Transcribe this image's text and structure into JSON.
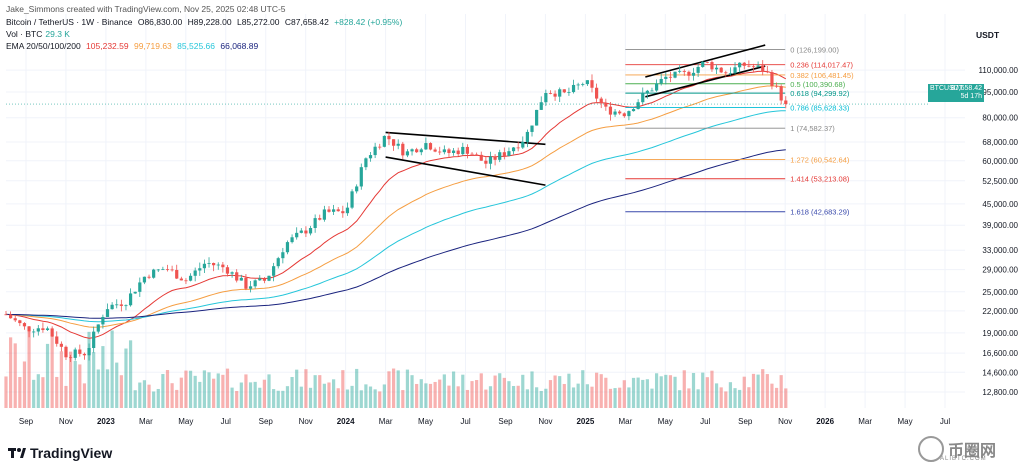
{
  "header": {
    "creator": "Jake_Simmons created with TradingView.com, Nov 25, 2025 02:48 UTC-5",
    "symbol": "Bitcoin / TetherUS · 1W · Binance",
    "ohlc": {
      "o": "O86,830.00",
      "h": "H89,228.00",
      "l": "L85,272.00",
      "c": "C87,658.42",
      "chg": "+828.42 (+0.95%)"
    },
    "vol_label": "Vol · BTC",
    "vol_value": "29.3 K",
    "ema_label": "EMA 20/50/100/200",
    "ema_values": [
      "105,232.59",
      "99,719.63",
      "85,525.66",
      "66,068.89"
    ]
  },
  "colors": {
    "up": "#26a69a",
    "down": "#ef5350",
    "ema20": "#e53935",
    "ema50": "#f59e42",
    "ema100": "#26c6da",
    "ema200": "#1a237e",
    "fib0": "#888888",
    "fib236": "#e53935",
    "fib382": "#f59e42",
    "fib5": "#4caf50",
    "fib618": "#009688",
    "fib786": "#00bcd4",
    "fib1272": "#f59e42",
    "fib1414": "#e53935",
    "fib1618": "#3949ab"
  },
  "axis_currency": "USDT",
  "price_tag": {
    "symbol": "BTCUSDT",
    "price": "87,658.42",
    "countdown": "5d 17h"
  },
  "logo_text": "TradingView",
  "watermark": {
    "text": "币圈网",
    "sub": "ALIBTC.COM"
  },
  "chart_data": {
    "type": "candlestick",
    "title": "Bitcoin / TetherUS · 1W · Binance",
    "scale": "log",
    "ylim": [
      11500,
      160000
    ],
    "x_tick_labels": [
      "Sep",
      "Nov",
      "2023",
      "Mar",
      "May",
      "Jul",
      "Sep",
      "Nov",
      "2024",
      "Mar",
      "May",
      "Jul",
      "Sep",
      "Nov",
      "2025",
      "Mar",
      "May",
      "Jul",
      "Sep",
      "Nov",
      "2026",
      "Mar",
      "May",
      "Jul"
    ],
    "y_tick_labels": [
      "110,000.00",
      "95,000.00",
      "80,000.00",
      "68,000.00",
      "60,000.00",
      "52,500.00",
      "45,000.00",
      "39,000.00",
      "33,000.00",
      "29,000.00",
      "25,000.00",
      "22,000.00",
      "19,000.00",
      "16,600.00",
      "14,600.00",
      "12,800.00"
    ],
    "y_tick_values": [
      110000,
      95000,
      80000,
      68000,
      60000,
      52500,
      45000,
      39000,
      33000,
      29000,
      25000,
      22000,
      19000,
      16600,
      14600,
      12800
    ],
    "price_anchors": [
      {
        "t": "2022-08",
        "p": 21500
      },
      {
        "t": "2022-09",
        "p": 19500
      },
      {
        "t": "2022-10",
        "p": 19800
      },
      {
        "t": "2022-11",
        "p": 16500
      },
      {
        "t": "2022-12",
        "p": 16600
      },
      {
        "t": "2023-01",
        "p": 22500
      },
      {
        "t": "2023-02",
        "p": 23500
      },
      {
        "t": "2023-03",
        "p": 28000
      },
      {
        "t": "2023-04",
        "p": 29300
      },
      {
        "t": "2023-05",
        "p": 27000
      },
      {
        "t": "2023-06",
        "p": 30400
      },
      {
        "t": "2023-07",
        "p": 29300
      },
      {
        "t": "2023-08",
        "p": 26000
      },
      {
        "t": "2023-09",
        "p": 27000
      },
      {
        "t": "2023-10",
        "p": 34500
      },
      {
        "t": "2023-11",
        "p": 37700
      },
      {
        "t": "2023-12",
        "p": 42500
      },
      {
        "t": "2024-01",
        "p": 42600
      },
      {
        "t": "2024-02",
        "p": 61000
      },
      {
        "t": "2024-03",
        "p": 71000
      },
      {
        "t": "2024-04",
        "p": 63000
      },
      {
        "t": "2024-05",
        "p": 67500
      },
      {
        "t": "2024-06",
        "p": 63000
      },
      {
        "t": "2024-07",
        "p": 65000
      },
      {
        "t": "2024-08",
        "p": 59000
      },
      {
        "t": "2024-09",
        "p": 63500
      },
      {
        "t": "2024-10",
        "p": 70000
      },
      {
        "t": "2024-11",
        "p": 96000
      },
      {
        "t": "2024-12",
        "p": 93500
      },
      {
        "t": "2025-01",
        "p": 102000
      },
      {
        "t": "2025-02",
        "p": 84500
      },
      {
        "t": "2025-03",
        "p": 82500
      },
      {
        "t": "2025-04",
        "p": 94000
      },
      {
        "t": "2025-05",
        "p": 104600
      },
      {
        "t": "2025-06",
        "p": 107000
      },
      {
        "t": "2025-07",
        "p": 115700
      },
      {
        "t": "2025-08",
        "p": 108200
      },
      {
        "t": "2025-09",
        "p": 114000
      },
      {
        "t": "2025-10",
        "p": 110000
      },
      {
        "t": "2025-11",
        "p": 87658
      }
    ],
    "series": [
      {
        "name": "EMA 20",
        "last": 105232.59
      },
      {
        "name": "EMA 50",
        "last": 99719.63
      },
      {
        "name": "EMA 100",
        "last": 85525.66
      },
      {
        "name": "EMA 200",
        "last": 66068.89
      }
    ],
    "fib_levels": [
      {
        "ratio": "0",
        "price": 126199.0,
        "label": "0 (126,199.00)",
        "color": "fib0"
      },
      {
        "ratio": "0.236",
        "price": 114017.47,
        "label": "0.236 (114,017.47)",
        "color": "fib236"
      },
      {
        "ratio": "0.382",
        "price": 106481.45,
        "label": "0.382 (106,481.45)",
        "color": "fib382"
      },
      {
        "ratio": "0.5",
        "price": 100390.68,
        "label": "0.5 (100,390.68)",
        "color": "fib5"
      },
      {
        "ratio": "0.618",
        "price": 94299.92,
        "label": "0.618 (94,299.92)",
        "color": "fib618"
      },
      {
        "ratio": "0.786",
        "price": 85628.33,
        "label": "0.786 (85,628.33)",
        "color": "fib786"
      },
      {
        "ratio": "1",
        "price": 74582.37,
        "label": "1 (74,582.37)",
        "color": "fib0"
      },
      {
        "ratio": "1.272",
        "price": 60542.64,
        "label": "1.272 (60,542.64)",
        "color": "fib1272"
      },
      {
        "ratio": "1.414",
        "price": 53213.08,
        "label": "1.414 (53,213.08)",
        "color": "fib1414"
      },
      {
        "ratio": "1.618",
        "price": 42683.29,
        "label": "1.618 (42,683.29)",
        "color": "fib1618"
      }
    ],
    "trendlines": [
      {
        "name": "flag-upper",
        "from": {
          "t": "2024-03",
          "p": 72500
        },
        "to": {
          "t": "2024-11",
          "p": 67000
        }
      },
      {
        "name": "flag-lower",
        "from": {
          "t": "2024-03",
          "p": 61500
        },
        "to": {
          "t": "2024-11",
          "p": 51000
        }
      },
      {
        "name": "wedge-upper",
        "from": {
          "t": "2025-04",
          "p": 105000
        },
        "to": {
          "t": "2025-10",
          "p": 130000
        }
      },
      {
        "name": "wedge-lower",
        "from": {
          "t": "2025-04",
          "p": 92000
        },
        "to": {
          "t": "2025-10",
          "p": 113000
        }
      }
    ],
    "current_price": 87658.42
  }
}
